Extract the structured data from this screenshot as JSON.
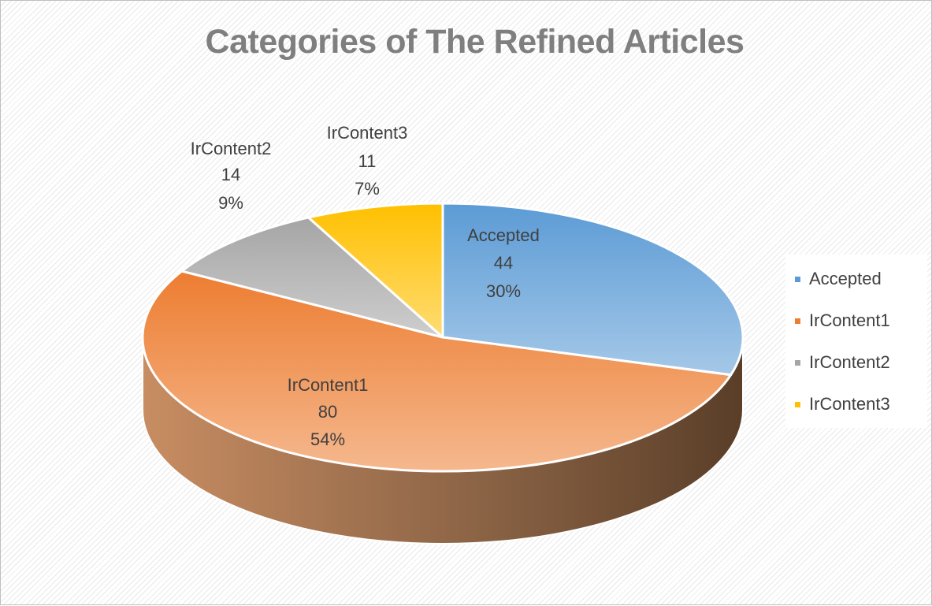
{
  "chart_data": {
    "type": "pie",
    "title": "Categories of The Refined Articles",
    "categories": [
      "Accepted",
      "IrContent1",
      "IrContent2",
      "IrContent3"
    ],
    "values": [
      44,
      80,
      14,
      11
    ],
    "percentages": [
      "30%",
      "54%",
      "9%",
      "7%"
    ],
    "colors": [
      "#5b9bd5",
      "#ed7d31",
      "#a5a5a5",
      "#ffc000"
    ],
    "legend_position": "right",
    "style": "3d"
  }
}
